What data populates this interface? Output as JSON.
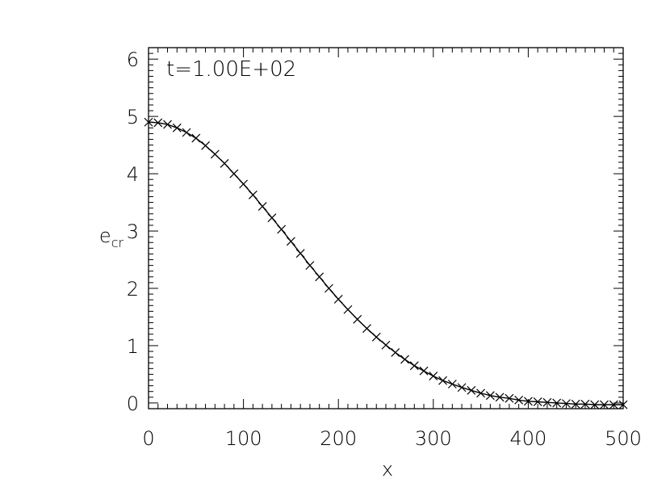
{
  "chart_data": {
    "type": "line",
    "annotation": "t=1.00E+02",
    "xlabel": "x",
    "ylabel_main": "e",
    "ylabel_sub": "cr",
    "xlim": [
      0,
      500
    ],
    "ylim": [
      -0.1,
      6.2
    ],
    "x_ticks": [
      0,
      100,
      200,
      300,
      400,
      500
    ],
    "x_tick_labels": [
      "0",
      "100",
      "200",
      "300",
      "400",
      "500"
    ],
    "y_ticks": [
      0,
      1,
      2,
      3,
      4,
      5,
      6
    ],
    "y_tick_labels": [
      "0",
      "1",
      "2",
      "3",
      "4",
      "5",
      "6"
    ],
    "line_color": "#000000",
    "series": [
      {
        "marker": "x",
        "x": [
          0,
          10,
          20,
          30,
          40,
          50,
          60,
          70,
          80,
          90,
          100,
          110,
          120,
          130,
          140,
          150,
          160,
          170,
          180,
          190,
          200,
          210,
          220,
          230,
          240,
          250,
          260,
          270,
          280,
          290,
          300,
          310,
          320,
          330,
          340,
          350,
          360,
          370,
          380,
          390,
          400,
          410,
          420,
          430,
          440,
          450,
          460,
          470,
          480,
          490,
          500
        ],
        "y": [
          4.9,
          4.89,
          4.86,
          4.8,
          4.72,
          4.62,
          4.49,
          4.34,
          4.18,
          4.0,
          3.82,
          3.63,
          3.43,
          3.23,
          3.03,
          2.82,
          2.61,
          2.4,
          2.2,
          2.0,
          1.81,
          1.63,
          1.46,
          1.3,
          1.15,
          1.01,
          0.88,
          0.76,
          0.65,
          0.56,
          0.47,
          0.39,
          0.33,
          0.27,
          0.22,
          0.17,
          0.13,
          0.1,
          0.08,
          0.05,
          0.03,
          0.02,
          0.01,
          0.0,
          -0.01,
          -0.02,
          -0.02,
          -0.03,
          -0.03,
          -0.03,
          -0.03
        ]
      }
    ]
  }
}
